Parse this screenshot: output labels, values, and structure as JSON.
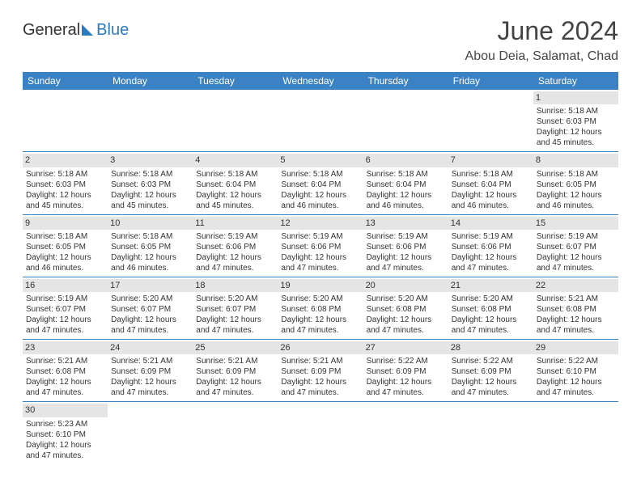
{
  "logo": {
    "word1": "General",
    "word2": "Blue"
  },
  "title": "June 2024",
  "location": "Abou Deia, Salamat, Chad",
  "weekdays": [
    "Sunday",
    "Monday",
    "Tuesday",
    "Wednesday",
    "Thursday",
    "Friday",
    "Saturday"
  ],
  "colors": {
    "header_bg": "#3b82c4",
    "header_text": "#ffffff",
    "daynum_bg": "#e5e5e5",
    "cell_border": "#3b82c4",
    "title_color": "#444444",
    "body_text": "#333333",
    "logo_blue": "#2b7bbf"
  },
  "weeks": [
    [
      {
        "n": "",
        "sr": "",
        "ss": "",
        "dl": ""
      },
      {
        "n": "",
        "sr": "",
        "ss": "",
        "dl": ""
      },
      {
        "n": "",
        "sr": "",
        "ss": "",
        "dl": ""
      },
      {
        "n": "",
        "sr": "",
        "ss": "",
        "dl": ""
      },
      {
        "n": "",
        "sr": "",
        "ss": "",
        "dl": ""
      },
      {
        "n": "",
        "sr": "",
        "ss": "",
        "dl": ""
      },
      {
        "n": "1",
        "sr": "Sunrise: 5:18 AM",
        "ss": "Sunset: 6:03 PM",
        "dl": "Daylight: 12 hours and 45 minutes."
      }
    ],
    [
      {
        "n": "2",
        "sr": "Sunrise: 5:18 AM",
        "ss": "Sunset: 6:03 PM",
        "dl": "Daylight: 12 hours and 45 minutes."
      },
      {
        "n": "3",
        "sr": "Sunrise: 5:18 AM",
        "ss": "Sunset: 6:03 PM",
        "dl": "Daylight: 12 hours and 45 minutes."
      },
      {
        "n": "4",
        "sr": "Sunrise: 5:18 AM",
        "ss": "Sunset: 6:04 PM",
        "dl": "Daylight: 12 hours and 45 minutes."
      },
      {
        "n": "5",
        "sr": "Sunrise: 5:18 AM",
        "ss": "Sunset: 6:04 PM",
        "dl": "Daylight: 12 hours and 46 minutes."
      },
      {
        "n": "6",
        "sr": "Sunrise: 5:18 AM",
        "ss": "Sunset: 6:04 PM",
        "dl": "Daylight: 12 hours and 46 minutes."
      },
      {
        "n": "7",
        "sr": "Sunrise: 5:18 AM",
        "ss": "Sunset: 6:04 PM",
        "dl": "Daylight: 12 hours and 46 minutes."
      },
      {
        "n": "8",
        "sr": "Sunrise: 5:18 AM",
        "ss": "Sunset: 6:05 PM",
        "dl": "Daylight: 12 hours and 46 minutes."
      }
    ],
    [
      {
        "n": "9",
        "sr": "Sunrise: 5:18 AM",
        "ss": "Sunset: 6:05 PM",
        "dl": "Daylight: 12 hours and 46 minutes."
      },
      {
        "n": "10",
        "sr": "Sunrise: 5:18 AM",
        "ss": "Sunset: 6:05 PM",
        "dl": "Daylight: 12 hours and 46 minutes."
      },
      {
        "n": "11",
        "sr": "Sunrise: 5:19 AM",
        "ss": "Sunset: 6:06 PM",
        "dl": "Daylight: 12 hours and 47 minutes."
      },
      {
        "n": "12",
        "sr": "Sunrise: 5:19 AM",
        "ss": "Sunset: 6:06 PM",
        "dl": "Daylight: 12 hours and 47 minutes."
      },
      {
        "n": "13",
        "sr": "Sunrise: 5:19 AM",
        "ss": "Sunset: 6:06 PM",
        "dl": "Daylight: 12 hours and 47 minutes."
      },
      {
        "n": "14",
        "sr": "Sunrise: 5:19 AM",
        "ss": "Sunset: 6:06 PM",
        "dl": "Daylight: 12 hours and 47 minutes."
      },
      {
        "n": "15",
        "sr": "Sunrise: 5:19 AM",
        "ss": "Sunset: 6:07 PM",
        "dl": "Daylight: 12 hours and 47 minutes."
      }
    ],
    [
      {
        "n": "16",
        "sr": "Sunrise: 5:19 AM",
        "ss": "Sunset: 6:07 PM",
        "dl": "Daylight: 12 hours and 47 minutes."
      },
      {
        "n": "17",
        "sr": "Sunrise: 5:20 AM",
        "ss": "Sunset: 6:07 PM",
        "dl": "Daylight: 12 hours and 47 minutes."
      },
      {
        "n": "18",
        "sr": "Sunrise: 5:20 AM",
        "ss": "Sunset: 6:07 PM",
        "dl": "Daylight: 12 hours and 47 minutes."
      },
      {
        "n": "19",
        "sr": "Sunrise: 5:20 AM",
        "ss": "Sunset: 6:08 PM",
        "dl": "Daylight: 12 hours and 47 minutes."
      },
      {
        "n": "20",
        "sr": "Sunrise: 5:20 AM",
        "ss": "Sunset: 6:08 PM",
        "dl": "Daylight: 12 hours and 47 minutes."
      },
      {
        "n": "21",
        "sr": "Sunrise: 5:20 AM",
        "ss": "Sunset: 6:08 PM",
        "dl": "Daylight: 12 hours and 47 minutes."
      },
      {
        "n": "22",
        "sr": "Sunrise: 5:21 AM",
        "ss": "Sunset: 6:08 PM",
        "dl": "Daylight: 12 hours and 47 minutes."
      }
    ],
    [
      {
        "n": "23",
        "sr": "Sunrise: 5:21 AM",
        "ss": "Sunset: 6:08 PM",
        "dl": "Daylight: 12 hours and 47 minutes."
      },
      {
        "n": "24",
        "sr": "Sunrise: 5:21 AM",
        "ss": "Sunset: 6:09 PM",
        "dl": "Daylight: 12 hours and 47 minutes."
      },
      {
        "n": "25",
        "sr": "Sunrise: 5:21 AM",
        "ss": "Sunset: 6:09 PM",
        "dl": "Daylight: 12 hours and 47 minutes."
      },
      {
        "n": "26",
        "sr": "Sunrise: 5:21 AM",
        "ss": "Sunset: 6:09 PM",
        "dl": "Daylight: 12 hours and 47 minutes."
      },
      {
        "n": "27",
        "sr": "Sunrise: 5:22 AM",
        "ss": "Sunset: 6:09 PM",
        "dl": "Daylight: 12 hours and 47 minutes."
      },
      {
        "n": "28",
        "sr": "Sunrise: 5:22 AM",
        "ss": "Sunset: 6:09 PM",
        "dl": "Daylight: 12 hours and 47 minutes."
      },
      {
        "n": "29",
        "sr": "Sunrise: 5:22 AM",
        "ss": "Sunset: 6:10 PM",
        "dl": "Daylight: 12 hours and 47 minutes."
      }
    ],
    [
      {
        "n": "30",
        "sr": "Sunrise: 5:23 AM",
        "ss": "Sunset: 6:10 PM",
        "dl": "Daylight: 12 hours and 47 minutes."
      },
      {
        "n": "",
        "sr": "",
        "ss": "",
        "dl": ""
      },
      {
        "n": "",
        "sr": "",
        "ss": "",
        "dl": ""
      },
      {
        "n": "",
        "sr": "",
        "ss": "",
        "dl": ""
      },
      {
        "n": "",
        "sr": "",
        "ss": "",
        "dl": ""
      },
      {
        "n": "",
        "sr": "",
        "ss": "",
        "dl": ""
      },
      {
        "n": "",
        "sr": "",
        "ss": "",
        "dl": ""
      }
    ]
  ]
}
